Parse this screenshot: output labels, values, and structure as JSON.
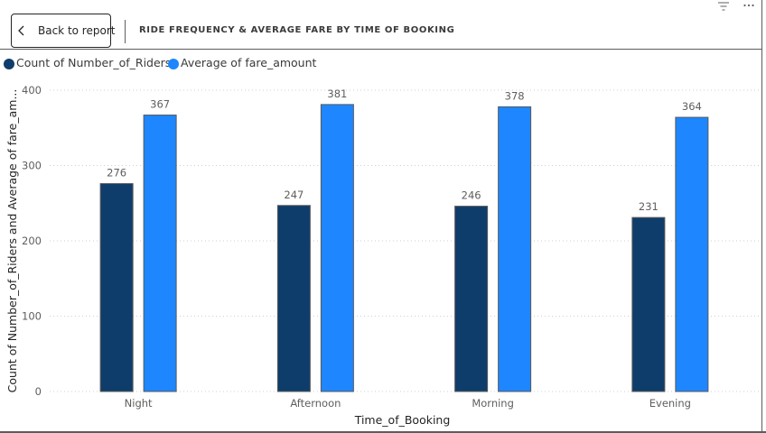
{
  "toolbar": {
    "back_label": "Back to report",
    "back_icon": "chevron-left-icon",
    "filter_icon": "filter-icon",
    "more_icon": "more-options-icon"
  },
  "page_title": "RIDE FREQUENCY & AVERAGE FARE BY TIME OF BOOKING",
  "colors": {
    "series_count": "#0f3d6b",
    "series_avg": "#1e86fe",
    "grid": "#cfcfcf",
    "text": "#605e5c"
  },
  "legend": [
    {
      "label": "Count of Number_of_Riders",
      "color": "#0f3d6b"
    },
    {
      "label": "Average of fare_amount",
      "color": "#1e86fe"
    }
  ],
  "chart_data": {
    "type": "bar",
    "categories": [
      "Night",
      "Afternoon",
      "Morning",
      "Evening"
    ],
    "series": [
      {
        "name": "Count of Number_of_Riders",
        "values": [
          276,
          247,
          246,
          231
        ]
      },
      {
        "name": "Average of fare_amount",
        "values": [
          367,
          381,
          378,
          364
        ]
      }
    ],
    "xlabel": "Time_of_Booking",
    "ylabel": "Count of Number_of_Riders and Average of fare_am...",
    "ylim": [
      0,
      400
    ],
    "yticks": [
      0,
      100,
      200,
      300,
      400
    ],
    "grid": true,
    "legend_position": "top-left"
  }
}
